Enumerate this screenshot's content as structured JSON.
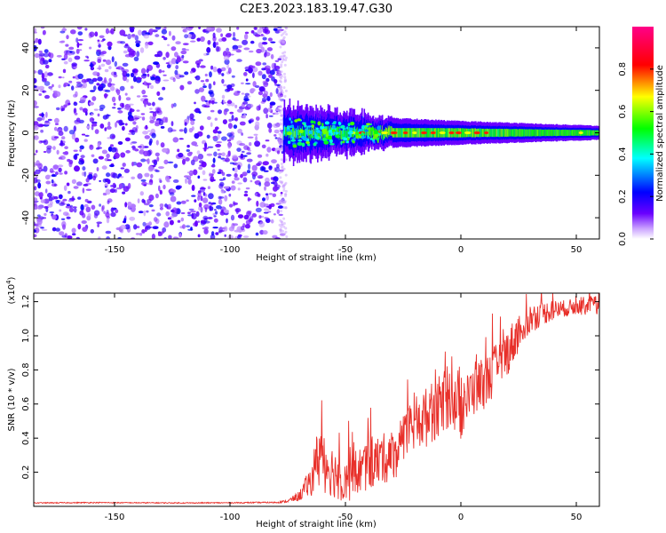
{
  "figure_title": "C2E3.2023.183.19.47.G30",
  "chart_data": [
    {
      "type": "heatmap",
      "title": "C2E3.2023.183.19.47.G30",
      "xlabel": "Height of straight line (km)",
      "ylabel": "Frequency (Hz)",
      "xlim": [
        -185,
        60
      ],
      "ylim": [
        -50,
        50
      ],
      "xticks": [
        -150,
        -100,
        -50,
        0,
        50
      ],
      "yticks": [
        -40,
        -20,
        0,
        20,
        40
      ],
      "grid": false,
      "colorbar": {
        "label": "Normalized spectral amplitude",
        "range": [
          0,
          1
        ],
        "ticks": [
          "0.0",
          "0.2",
          "0.4",
          "0.6",
          "0.8"
        ],
        "colormap": [
          "#ffffff",
          "#6a00ff",
          "#0000ff",
          "#00ffff",
          "#00ff00",
          "#ffff00",
          "#ff0000",
          "#ff00aa"
        ]
      },
      "regions": [
        {
          "name": "noise",
          "x_range": [
            -185,
            -77
          ],
          "freq_range": [
            -50,
            50
          ],
          "amplitude": 0.1
        },
        {
          "name": "signal",
          "x_range": [
            -77,
            60
          ],
          "freq_center": 0,
          "freq_halfwidth_start": 10,
          "freq_halfwidth_end": 3,
          "peak_amplitude": 0.9
        }
      ]
    },
    {
      "type": "line",
      "xlabel": "Height of straight line (km)",
      "ylabel": "SNR (10 * v/v)",
      "y_multiplier": "(x10",
      "y_multiplier_exp": "4",
      "xlim": [
        -185,
        60
      ],
      "ylim": [
        0,
        12500
      ],
      "xticks": [
        -150,
        -100,
        -50,
        0,
        50
      ],
      "yticks": [
        2000,
        4000,
        6000,
        8000,
        10000,
        12000
      ],
      "ytick_labels": [
        "0.2",
        "0.4",
        "0.6",
        "0.8",
        "1.0",
        "1.2"
      ],
      "grid": false,
      "series": [
        {
          "name": "SNR",
          "color": "#e8302a",
          "x": [
            -185,
            -160,
            -140,
            -120,
            -100,
            -80,
            -75,
            -70,
            -65,
            -62,
            -60,
            -58,
            -55,
            -50,
            -45,
            -40,
            -35,
            -30,
            -25,
            -20,
            -15,
            -10,
            -5,
            0,
            5,
            10,
            15,
            20,
            25,
            30,
            35,
            40,
            45,
            50,
            55,
            60
          ],
          "y": [
            200,
            220,
            210,
            200,
            210,
            230,
            300,
            600,
            1500,
            2800,
            3200,
            2500,
            2000,
            1500,
            2000,
            2400,
            2700,
            3000,
            3500,
            5000,
            5200,
            5800,
            6400,
            5500,
            6800,
            7200,
            8000,
            9000,
            10200,
            11000,
            11300,
            11500,
            11600,
            11700,
            11800,
            11600
          ],
          "noise_amplitude": [
            30,
            30,
            30,
            30,
            30,
            40,
            80,
            300,
            900,
            2000,
            2500,
            1800,
            1500,
            1400,
            1400,
            1500,
            1500,
            1500,
            1600,
            1800,
            1800,
            1800,
            1800,
            1600,
            1600,
            1500,
            1500,
            1400,
            1200,
            900,
            700,
            600,
            500,
            500,
            600,
            700
          ]
        }
      ]
    }
  ]
}
